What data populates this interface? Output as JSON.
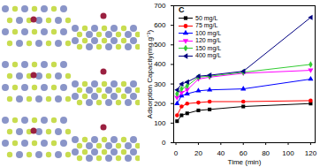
{
  "chart_data": {
    "type": "line",
    "title": "C",
    "x_label": "Time (min)",
    "y_label": "Adsorption Capacity(mg.g⁻¹)",
    "x": [
      1,
      5,
      10,
      20,
      30,
      60,
      120
    ],
    "series": [
      {
        "name": "50 mg/L",
        "color": "#000000",
        "marker": "square",
        "values": [
          110,
          140,
          150,
          165,
          170,
          185,
          200
        ]
      },
      {
        "name": "75 mg/L",
        "color": "#ff0000",
        "marker": "circle",
        "values": [
          140,
          185,
          200,
          205,
          210,
          210,
          215
        ]
      },
      {
        "name": "100 mg/L",
        "color": "#0000ff",
        "marker": "triangle",
        "values": [
          200,
          240,
          250,
          265,
          270,
          275,
          325
        ]
      },
      {
        "name": "120 mg/L",
        "color": "#ff00ff",
        "marker": "triangle-down",
        "values": [
          230,
          255,
          270,
          325,
          335,
          355,
          370
        ]
      },
      {
        "name": "150 mg/L",
        "color": "#33cc33",
        "marker": "diamond",
        "values": [
          250,
          275,
          290,
          335,
          340,
          360,
          400
        ]
      },
      {
        "name": "400 mg/L",
        "color": "#000080",
        "marker": "triangle-left",
        "values": [
          270,
          300,
          310,
          340,
          345,
          365,
          640
        ]
      }
    ],
    "xlim": [
      -2,
      124
    ],
    "xticks": [
      0,
      20,
      40,
      60,
      80,
      100,
      120
    ],
    "ylim": [
      0,
      700
    ],
    "yticks": [
      0,
      100,
      200,
      300,
      400,
      500,
      600,
      700
    ],
    "legend": "top-left"
  }
}
